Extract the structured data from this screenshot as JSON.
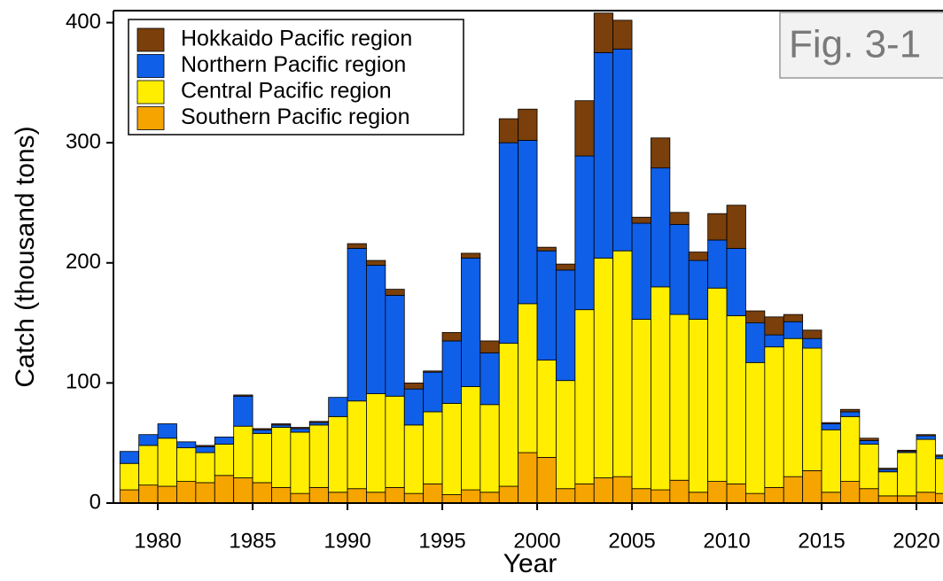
{
  "chart_data": {
    "type": "stacked_bar",
    "annotation": "Fig. 3-1",
    "x_label": "Year",
    "y_label": "Catch (thousand tons)",
    "x": [
      1978,
      1979,
      1980,
      1981,
      1982,
      1983,
      1984,
      1985,
      1986,
      1987,
      1988,
      1989,
      1990,
      1991,
      1992,
      1993,
      1994,
      1995,
      1996,
      1997,
      1998,
      1999,
      2000,
      2001,
      2002,
      2003,
      2004,
      2005,
      2006,
      2007,
      2008,
      2009,
      2010,
      2011,
      2012,
      2013,
      2014,
      2015,
      2016,
      2017,
      2018,
      2019,
      2020,
      2021
    ],
    "series": [
      {
        "name": "Southern Pacific region",
        "color": "#f5a400",
        "values": [
          11,
          15,
          14,
          18,
          17,
          23,
          21,
          17,
          13,
          8,
          13,
          9,
          12,
          9,
          13,
          8,
          16,
          7,
          11,
          9,
          14,
          42,
          38,
          12,
          16,
          21,
          22,
          12,
          11,
          19,
          9,
          18,
          16,
          8,
          13,
          22,
          27,
          9,
          18,
          12,
          6,
          6,
          9,
          8
        ]
      },
      {
        "name": "Central Pacific region",
        "color": "#ffee00",
        "values": [
          22,
          33,
          40,
          28,
          25,
          26,
          43,
          41,
          50,
          51,
          52,
          63,
          73,
          82,
          76,
          57,
          60,
          76,
          86,
          73,
          119,
          124,
          81,
          90,
          145,
          183,
          188,
          141,
          169,
          138,
          144,
          161,
          140,
          109,
          117,
          115,
          102,
          52,
          54,
          37,
          20,
          36,
          44,
          29
        ]
      },
      {
        "name": "Northern Pacific region",
        "color": "#0f5fe8",
        "values": [
          10,
          9,
          12,
          5,
          5,
          6,
          25,
          3,
          2,
          3,
          2,
          16,
          127,
          107,
          84,
          30,
          33,
          52,
          107,
          43,
          167,
          136,
          91,
          92,
          128,
          171,
          168,
          80,
          99,
          75,
          49,
          40,
          56,
          33,
          10,
          14,
          8,
          5,
          4,
          3,
          2,
          1,
          3,
          2
        ]
      },
      {
        "name": "Hokkaido Pacific region",
        "color": "#7a3f0a",
        "values": [
          0,
          0,
          0,
          0,
          1,
          0,
          1,
          1,
          1,
          1,
          1,
          0,
          4,
          4,
          5,
          5,
          1,
          7,
          4,
          10,
          20,
          26,
          3,
          5,
          46,
          33,
          24,
          5,
          25,
          10,
          7,
          22,
          36,
          10,
          15,
          6,
          7,
          1,
          2,
          2,
          1,
          1,
          1,
          1
        ]
      }
    ],
    "xlim": [
      1977.66,
      2021.4
    ],
    "xticks": [
      1980,
      1985,
      1990,
      1995,
      2000,
      2005,
      2010,
      2015,
      2020
    ],
    "ylim": [
      0,
      410
    ],
    "yticks": [
      0,
      100,
      200,
      300,
      400
    ],
    "legend": "upper-left"
  }
}
